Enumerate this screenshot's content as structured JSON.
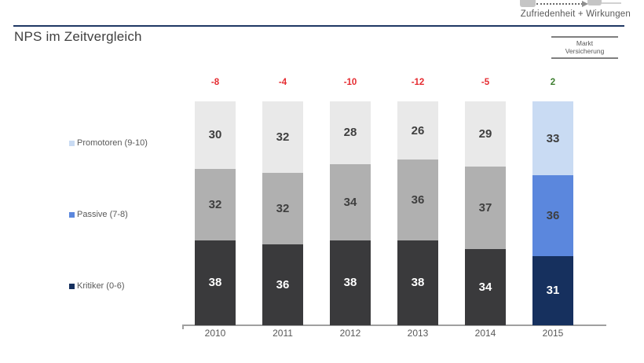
{
  "header": {
    "context_label": "Zufriedenheit + Wirkungen",
    "title": "NPS im Zeitvergleich",
    "segment_box": {
      "line1": "Markt",
      "line2": "Versicherung"
    }
  },
  "chart_data": {
    "type": "bar",
    "subtype": "stacked-100",
    "title": "NPS im Zeitvergleich",
    "categories": [
      "2010",
      "2011",
      "2012",
      "2013",
      "2014",
      "2015"
    ],
    "series": [
      {
        "name": "Promotoren (9-10)",
        "values": [
          30,
          32,
          28,
          26,
          29,
          33
        ]
      },
      {
        "name": "Passive (7-8)",
        "values": [
          32,
          32,
          34,
          36,
          37,
          36
        ]
      },
      {
        "name": "Kritiker (0-6)",
        "values": [
          38,
          36,
          38,
          38,
          34,
          31
        ]
      }
    ],
    "nps_values": [
      -8,
      -4,
      -10,
      -12,
      -5,
      2
    ],
    "ylim": [
      0,
      100
    ],
    "grid": false,
    "legend_position": "left",
    "highlight_category": "2015",
    "xlabel": "",
    "ylabel": ""
  },
  "colors": {
    "historic_palette": [
      "#e9e9e9",
      "#b0b0b0",
      "#3a3a3c"
    ],
    "highlight_palette": [
      "#c9dbf3",
      "#5b87dd",
      "#16305e"
    ],
    "segment_label_colors": [
      "#3f3f3f",
      "#3f3f3f",
      "#ffffff"
    ],
    "nps_negative": "#e52b30",
    "nps_positive": "#3d7e2f",
    "accent_rule": "#1f3864",
    "axis": "#a0a0a0",
    "text_muted": "#595959"
  }
}
